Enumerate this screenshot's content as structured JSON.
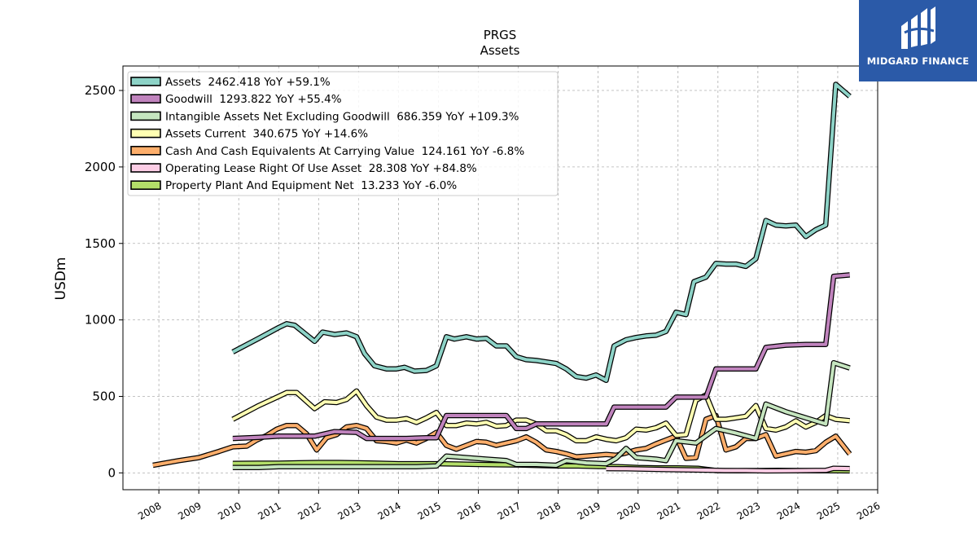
{
  "chart_data": {
    "type": "line",
    "title": "PRGS",
    "subtitle": "Assets",
    "ylabel": "USDm",
    "xlabel": "",
    "xlim": [
      2007.1,
      2026.0
    ],
    "ylim": [
      -110,
      2660
    ],
    "yticks": [
      0,
      500,
      1000,
      1500,
      2000,
      2500
    ],
    "xticks": [
      2008,
      2009,
      2010,
      2011,
      2012,
      2013,
      2014,
      2015,
      2016,
      2017,
      2018,
      2019,
      2020,
      2021,
      2022,
      2023,
      2024,
      2025,
      2026
    ],
    "grid": true,
    "legend_position": "top-left",
    "series": [
      {
        "name": "Assets",
        "legend": "Assets  2462.418 YoY +59.1%",
        "color": "#8dd3c7",
        "x": [
          2009.85,
          2010.5,
          2011.0,
          2011.2,
          2011.4,
          2011.9,
          2012.1,
          2012.4,
          2012.7,
          2012.95,
          2013.15,
          2013.4,
          2013.7,
          2013.95,
          2014.15,
          2014.4,
          2014.7,
          2014.95,
          2015.2,
          2015.4,
          2015.7,
          2015.95,
          2016.2,
          2016.45,
          2016.7,
          2016.95,
          2017.2,
          2017.45,
          2017.7,
          2017.95,
          2018.2,
          2018.45,
          2018.7,
          2018.95,
          2019.2,
          2019.4,
          2019.7,
          2019.95,
          2020.2,
          2020.45,
          2020.7,
          2020.95,
          2021.2,
          2021.4,
          2021.7,
          2021.95,
          2022.2,
          2022.45,
          2022.7,
          2022.95,
          2023.2,
          2023.45,
          2023.7,
          2023.95,
          2024.2,
          2024.45,
          2024.7,
          2024.95,
          2025.3
        ],
        "y": [
          790,
          880,
          950,
          975,
          965,
          860,
          920,
          905,
          915,
          890,
          780,
          700,
          680,
          680,
          690,
          665,
          670,
          700,
          890,
          875,
          890,
          875,
          880,
          830,
          830,
          760,
          740,
          735,
          725,
          715,
          680,
          630,
          620,
          640,
          605,
          830,
          870,
          885,
          895,
          900,
          925,
          1050,
          1035,
          1250,
          1280,
          1370,
          1365,
          1365,
          1350,
          1400,
          1650,
          1620,
          1615,
          1620,
          1545,
          1590,
          1620,
          2540,
          2462
        ]
      },
      {
        "name": "Goodwill",
        "legend": "Goodwill  1293.822 YoY +55.4%",
        "color": "#c083bd",
        "x": [
          2009.85,
          2010.5,
          2011.0,
          2011.5,
          2011.9,
          2012.4,
          2012.95,
          2013.2,
          2013.7,
          2014.2,
          2014.7,
          2014.95,
          2015.2,
          2015.7,
          2016.2,
          2016.7,
          2016.95,
          2017.2,
          2017.45,
          2017.95,
          2018.5,
          2018.95,
          2019.2,
          2019.4,
          2019.95,
          2020.7,
          2020.95,
          2021.4,
          2021.7,
          2021.95,
          2022.45,
          2022.95,
          2023.2,
          2023.7,
          2024.2,
          2024.7,
          2024.9,
          2025.3
        ],
        "y": [
          225,
          232,
          240,
          240,
          240,
          270,
          265,
          225,
          225,
          225,
          230,
          230,
          375,
          375,
          375,
          375,
          290,
          290,
          320,
          320,
          320,
          320,
          320,
          430,
          430,
          430,
          495,
          495,
          495,
          680,
          680,
          680,
          820,
          835,
          840,
          840,
          1285,
          1294
        ]
      },
      {
        "name": "Intangible Assets Net Excluding Goodwill",
        "legend": "Intangible Assets Net Excluding Goodwill  686.359 YoY +109.3%",
        "color": "#c5e5bf",
        "x": [
          2009.85,
          2010.5,
          2011.0,
          2011.5,
          2011.9,
          2012.4,
          2012.95,
          2013.45,
          2013.95,
          2014.45,
          2014.95,
          2015.2,
          2015.7,
          2016.2,
          2016.7,
          2016.95,
          2017.45,
          2017.95,
          2018.2,
          2018.7,
          2019.2,
          2019.45,
          2019.7,
          2019.95,
          2020.45,
          2020.7,
          2020.95,
          2021.45,
          2021.95,
          2022.45,
          2022.95,
          2023.2,
          2023.7,
          2024.2,
          2024.7,
          2024.9,
          2025.3
        ],
        "y": [
          35,
          35,
          40,
          40,
          40,
          40,
          40,
          40,
          40,
          40,
          45,
          110,
          100,
          90,
          80,
          55,
          55,
          50,
          80,
          65,
          60,
          95,
          160,
          100,
          90,
          80,
          210,
          195,
          290,
          260,
          225,
          450,
          400,
          360,
          320,
          720,
          686
        ]
      },
      {
        "name": "Assets Current",
        "legend": "Assets Current  340.675 YoY +14.6%",
        "color": "#ffffb3",
        "x": [
          2009.85,
          2010.5,
          2011.0,
          2011.2,
          2011.45,
          2011.9,
          2012.15,
          2012.45,
          2012.7,
          2012.95,
          2013.2,
          2013.45,
          2013.7,
          2013.95,
          2014.2,
          2014.45,
          2014.7,
          2014.95,
          2015.2,
          2015.45,
          2015.7,
          2015.95,
          2016.2,
          2016.45,
          2016.7,
          2016.95,
          2017.2,
          2017.45,
          2017.7,
          2017.95,
          2018.2,
          2018.45,
          2018.7,
          2018.95,
          2019.2,
          2019.45,
          2019.7,
          2019.95,
          2020.2,
          2020.45,
          2020.7,
          2020.95,
          2021.2,
          2021.45,
          2021.7,
          2021.95,
          2022.2,
          2022.45,
          2022.7,
          2022.95,
          2023.2,
          2023.45,
          2023.7,
          2023.95,
          2024.2,
          2024.45,
          2024.7,
          2024.95,
          2025.3
        ],
        "y": [
          350,
          440,
          500,
          525,
          525,
          420,
          465,
          460,
          480,
          535,
          440,
          365,
          345,
          345,
          355,
          330,
          360,
          395,
          310,
          310,
          325,
          320,
          330,
          305,
          310,
          345,
          345,
          320,
          275,
          275,
          250,
          210,
          210,
          235,
          220,
          210,
          230,
          285,
          280,
          295,
          325,
          245,
          250,
          475,
          510,
          350,
          350,
          360,
          370,
          440,
          290,
          280,
          300,
          340,
          300,
          330,
          375,
          350,
          341
        ]
      },
      {
        "name": "Cash And Cash Equivalents At Carrying Value",
        "legend": "Cash And Cash Equivalents At Carrying Value  124.161 YoY -6.8%",
        "color": "#fdae6b",
        "x": [
          2007.85,
          2008.5,
          2009.0,
          2009.5,
          2009.85,
          2010.2,
          2010.45,
          2010.7,
          2010.95,
          2011.2,
          2011.45,
          2011.7,
          2011.95,
          2012.2,
          2012.45,
          2012.7,
          2012.95,
          2013.2,
          2013.45,
          2013.7,
          2013.95,
          2014.2,
          2014.45,
          2014.7,
          2014.95,
          2015.2,
          2015.45,
          2015.7,
          2015.95,
          2016.2,
          2016.45,
          2016.7,
          2016.95,
          2017.2,
          2017.45,
          2017.7,
          2017.95,
          2018.2,
          2018.45,
          2018.7,
          2018.95,
          2019.2,
          2019.45,
          2019.7,
          2019.95,
          2020.2,
          2020.45,
          2020.7,
          2020.95,
          2021.2,
          2021.45,
          2021.7,
          2021.95,
          2022.2,
          2022.45,
          2022.7,
          2022.95,
          2023.2,
          2023.45,
          2023.7,
          2023.95,
          2024.2,
          2024.45,
          2024.7,
          2024.95,
          2025.3
        ],
        "y": [
          50,
          80,
          100,
          140,
          170,
          175,
          215,
          245,
          285,
          310,
          310,
          255,
          150,
          230,
          250,
          300,
          310,
          290,
          210,
          205,
          195,
          215,
          195,
          225,
          265,
          180,
          155,
          180,
          205,
          200,
          180,
          195,
          210,
          235,
          200,
          150,
          140,
          125,
          105,
          110,
          115,
          120,
          115,
          130,
          150,
          160,
          190,
          215,
          240,
          95,
          100,
          350,
          375,
          150,
          170,
          225,
          225,
          250,
          110,
          125,
          140,
          135,
          145,
          200,
          240,
          124
        ]
      },
      {
        "name": "Operating Lease Right Of Use Asset",
        "legend": "Operating Lease Right Of Use Asset  28.308 YoY +84.8%",
        "color": "#fccde5",
        "x": [
          2019.2,
          2019.7,
          2020.2,
          2020.7,
          2021.2,
          2021.7,
          2022.2,
          2022.7,
          2023.2,
          2023.7,
          2024.2,
          2024.7,
          2024.9,
          2025.3
        ],
        "y": [
          28,
          27,
          25,
          22,
          20,
          18,
          15,
          15,
          13,
          14,
          15,
          16,
          30,
          28
        ]
      },
      {
        "name": "Property Plant And Equipment Net",
        "legend": "Property Plant And Equipment Net  13.233 YoY -6.0%",
        "color": "#b3de69",
        "x": [
          2009.85,
          2010.5,
          2011.0,
          2011.5,
          2012.0,
          2012.5,
          2013.0,
          2013.5,
          2014.0,
          2014.5,
          2015.0,
          2015.5,
          2016.0,
          2016.5,
          2017.0,
          2017.5,
          2018.0,
          2018.5,
          2019.0,
          2019.5,
          2020.0,
          2020.5,
          2021.0,
          2021.5,
          2021.95,
          2022.5,
          2023.0,
          2023.5,
          2024.0,
          2024.5,
          2025.0,
          2025.3
        ],
        "y": [
          62,
          63,
          63,
          66,
          68,
          68,
          66,
          63,
          60,
          60,
          60,
          58,
          55,
          53,
          52,
          48,
          45,
          45,
          42,
          40,
          35,
          33,
          32,
          30,
          15,
          14,
          15,
          16,
          15,
          14,
          14,
          13
        ]
      }
    ]
  },
  "logo": {
    "text": "MIDGARD FINANCE",
    "bg_color": "#2b5aa8",
    "icon": "midgard-logo-icon"
  }
}
